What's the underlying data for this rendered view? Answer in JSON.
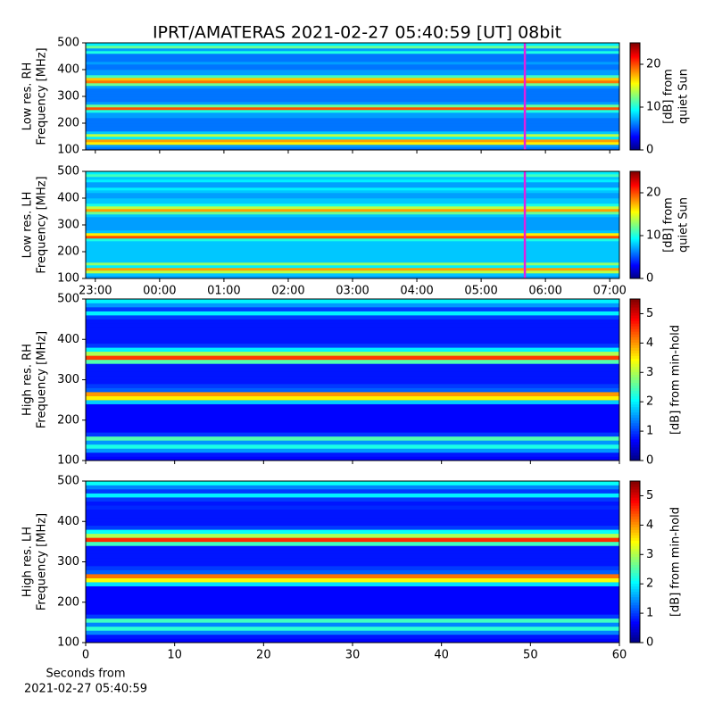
{
  "title": "IPRT/AMATERAS 2021-02-27 05:40:59 [UT]   08bit",
  "chart_data": [
    {
      "type": "heatmap",
      "ylabel": [
        "Low res. RH",
        "Frequency [MHz]"
      ],
      "colorbar_label": [
        "[dB] from",
        "quiet Sun"
      ],
      "xlim": [
        22.85,
        31.15
      ],
      "xticks": [
        23,
        24,
        25,
        26,
        27,
        28,
        29,
        30,
        31
      ],
      "xticklabels": false,
      "ylim": [
        100,
        500
      ],
      "yticks": [
        100,
        200,
        300,
        400,
        500
      ],
      "clim": [
        0,
        25
      ],
      "cticks": [
        0,
        10,
        20
      ],
      "vline": 29.68,
      "vline_color": "#e020e0",
      "y": [
        105,
        115,
        125,
        135,
        145,
        155,
        165,
        175,
        185,
        195,
        205,
        215,
        225,
        235,
        245,
        255,
        265,
        275,
        285,
        295,
        305,
        315,
        325,
        335,
        345,
        355,
        365,
        375,
        385,
        395,
        405,
        415,
        425,
        435,
        445,
        455,
        465,
        475,
        485,
        495
      ],
      "values": [
        6,
        7,
        16,
        18,
        9,
        14,
        8,
        6,
        6,
        6,
        6,
        6,
        7,
        7,
        10,
        20,
        12,
        7,
        6,
        6,
        6,
        6,
        6,
        7,
        12,
        19,
        17,
        11,
        7,
        7,
        6,
        6,
        7,
        6,
        6,
        6,
        10,
        7,
        12,
        9
      ]
    },
    {
      "type": "heatmap",
      "ylabel": [
        "Low res. LH",
        "Frequency [MHz]"
      ],
      "colorbar_label": [
        "[dB] from",
        "quiet Sun"
      ],
      "xlim": [
        22.85,
        31.15
      ],
      "xticks": [
        {
          "value": 23,
          "label": "23:00"
        },
        {
          "value": 24,
          "label": "00:00"
        },
        {
          "value": 25,
          "label": "01:00"
        },
        {
          "value": 26,
          "label": "02:00"
        },
        {
          "value": 27,
          "label": "03:00"
        },
        {
          "value": 28,
          "label": "04:00"
        },
        {
          "value": 29,
          "label": "05:00"
        },
        {
          "value": 30,
          "label": "06:00"
        },
        {
          "value": 31,
          "label": "07:00"
        }
      ],
      "xticklabels": true,
      "ylim": [
        100,
        500
      ],
      "yticks": [
        100,
        200,
        300,
        400,
        500
      ],
      "clim": [
        0,
        25
      ],
      "cticks": [
        0,
        10,
        20
      ],
      "vline": 29.68,
      "vline_color": "#e020e0",
      "y": [
        105,
        115,
        125,
        135,
        145,
        155,
        165,
        175,
        185,
        195,
        205,
        215,
        225,
        235,
        245,
        255,
        265,
        275,
        285,
        295,
        305,
        315,
        325,
        335,
        345,
        355,
        365,
        375,
        385,
        395,
        405,
        415,
        425,
        435,
        445,
        455,
        465,
        475,
        485,
        495
      ],
      "values": [
        7,
        8,
        14,
        18,
        9,
        13,
        8,
        8,
        8,
        8,
        8,
        8,
        8,
        8,
        10,
        20,
        16,
        8,
        7,
        7,
        7,
        7,
        7,
        8,
        12,
        18,
        14,
        10,
        8,
        8,
        7,
        7,
        8,
        9,
        7,
        7,
        9,
        8,
        11,
        9
      ]
    },
    {
      "type": "heatmap",
      "ylabel": [
        "High res. RH",
        "Frequency [MHz]"
      ],
      "colorbar_label": [
        "[dB] from min-hold"
      ],
      "xlim": [
        0,
        60
      ],
      "xticks": [
        0,
        10,
        20,
        30,
        40,
        50,
        60
      ],
      "xticklabels": false,
      "ylim": [
        100,
        500
      ],
      "yticks": [
        100,
        200,
        300,
        400,
        500
      ],
      "clim": [
        0,
        5.5
      ],
      "cticks": [
        0,
        1,
        2,
        3,
        4,
        5
      ],
      "y": [
        105,
        115,
        125,
        135,
        145,
        155,
        165,
        175,
        185,
        195,
        205,
        215,
        225,
        235,
        245,
        255,
        265,
        275,
        285,
        295,
        305,
        315,
        325,
        335,
        345,
        355,
        365,
        375,
        385,
        395,
        405,
        415,
        425,
        435,
        445,
        455,
        465,
        475,
        485,
        495
      ],
      "values": [
        0.7,
        0.8,
        1.5,
        2.2,
        1.5,
        2.5,
        1,
        0.7,
        0.7,
        0.7,
        0.7,
        0.7,
        0.7,
        0.7,
        1.8,
        3.5,
        4,
        1.2,
        1,
        0.8,
        0.8,
        0.8,
        0.8,
        0.8,
        2.5,
        4.5,
        3,
        2,
        1,
        0.8,
        0.8,
        0.8,
        0.8,
        0.8,
        0.8,
        1,
        2,
        1,
        1.5,
        2
      ]
    },
    {
      "type": "heatmap",
      "ylabel": [
        "High res. LH",
        "Frequency [MHz]"
      ],
      "colorbar_label": [
        "[dB] from min-hold"
      ],
      "xlim": [
        0,
        60
      ],
      "xticks": [
        0,
        10,
        20,
        30,
        40,
        50,
        60
      ],
      "xticklabels": true,
      "xlabel": [
        "Seconds from",
        "2021-02-27 05:40:59"
      ],
      "ylim": [
        100,
        500
      ],
      "yticks": [
        100,
        200,
        300,
        400,
        500
      ],
      "clim": [
        0,
        5.5
      ],
      "cticks": [
        0,
        1,
        2,
        3,
        4,
        5
      ],
      "y": [
        105,
        115,
        125,
        135,
        145,
        155,
        165,
        175,
        185,
        195,
        205,
        215,
        225,
        235,
        245,
        255,
        265,
        275,
        285,
        295,
        305,
        315,
        325,
        335,
        345,
        355,
        365,
        375,
        385,
        395,
        405,
        415,
        425,
        435,
        445,
        455,
        465,
        475,
        485,
        495
      ],
      "values": [
        0.7,
        0.8,
        1.4,
        2.3,
        1.4,
        2.4,
        1,
        0.7,
        0.7,
        0.7,
        0.7,
        0.7,
        0.7,
        0.7,
        1.9,
        3.4,
        4.2,
        1.2,
        1,
        0.8,
        0.8,
        0.8,
        0.8,
        0.8,
        2.4,
        4.6,
        3,
        2.1,
        1,
        0.8,
        0.8,
        0.8,
        0.8,
        0.9,
        0.8,
        1,
        2,
        1,
        1.4,
        2.1
      ]
    }
  ]
}
